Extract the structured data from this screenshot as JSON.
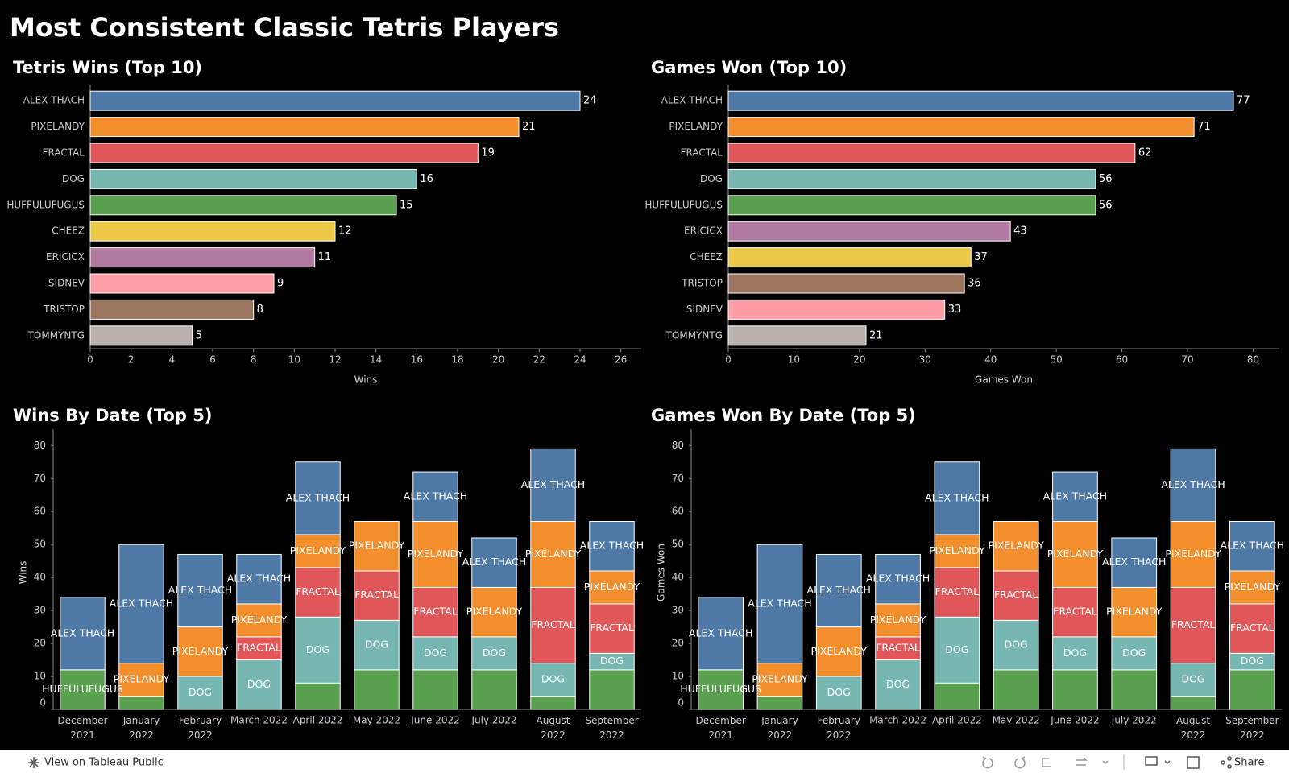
{
  "title": "Most Consistent Classic Tetris Players",
  "chart_data": [
    {
      "type": "hbar",
      "title": "Tetris Wins (Top 10)",
      "categories": [
        "ALEX THACH",
        "PIXELANDY",
        "FRACTAL",
        "DOG",
        "HUFFULUFUGUS",
        "CHEEZ",
        "ERICICX",
        "SIDNEV",
        "TRISTOP",
        "TOMMYNTG"
      ],
      "values": [
        24,
        21,
        19,
        16,
        15,
        12,
        11,
        9,
        8,
        5
      ],
      "colors": [
        "#4e79a7",
        "#f28e2b",
        "#e15759",
        "#76b7b2",
        "#59a14f",
        "#edc948",
        "#b07aa1",
        "#ff9da7",
        "#9c755f",
        "#bab0ac"
      ],
      "xlabel": "Wins",
      "xlim": [
        0,
        27
      ],
      "xticks": [
        0,
        2,
        4,
        6,
        8,
        10,
        12,
        14,
        16,
        18,
        20,
        22,
        24,
        26
      ]
    },
    {
      "type": "hbar",
      "title": "Games Won (Top 10)",
      "categories": [
        "ALEX THACH",
        "PIXELANDY",
        "FRACTAL",
        "DOG",
        "HUFFULUFUGUS",
        "ERICICX",
        "CHEEZ",
        "TRISTOP",
        "SIDNEV",
        "TOMMYNTG"
      ],
      "values": [
        77,
        71,
        62,
        56,
        56,
        43,
        37,
        36,
        33,
        21
      ],
      "colors": [
        "#4e79a7",
        "#f28e2b",
        "#e15759",
        "#76b7b2",
        "#59a14f",
        "#b07aa1",
        "#edc948",
        "#9c755f",
        "#ff9da7",
        "#bab0ac"
      ],
      "xlabel": "Games Won",
      "xlim": [
        0,
        84
      ],
      "xticks": [
        0,
        10,
        20,
        30,
        40,
        50,
        60,
        70,
        80
      ]
    },
    {
      "type": "stacked_bar",
      "title": "Wins By Date (Top 5)",
      "ylabel": "Wins",
      "categories": [
        "December 2021",
        "January 2022",
        "February 2022",
        "March 2022",
        "April 2022",
        "May 2022",
        "June 2022",
        "July 2022",
        "August 2022",
        "September 2022"
      ],
      "series": [
        {
          "name": "HUFFULUFUGUS",
          "color": "#59a14f",
          "values": [
            12,
            4,
            null,
            null,
            8,
            12,
            12,
            12,
            4,
            12
          ]
        },
        {
          "name": "DOG",
          "color": "#76b7b2",
          "values": [
            null,
            null,
            10,
            15,
            20,
            15,
            10,
            10,
            10,
            5
          ]
        },
        {
          "name": "FRACTAL",
          "color": "#e15759",
          "values": [
            null,
            null,
            null,
            7,
            15,
            15,
            15,
            null,
            23,
            15
          ]
        },
        {
          "name": "PIXELANDY",
          "color": "#f28e2b",
          "values": [
            null,
            10,
            15,
            10,
            10,
            15,
            20,
            15,
            20,
            10
          ]
        },
        {
          "name": "ALEX THACH",
          "color": "#4e79a7",
          "values": [
            22,
            36,
            22,
            15,
            22,
            null,
            15,
            15,
            22,
            15
          ]
        }
      ],
      "ylim": [
        0,
        83
      ],
      "yticks": [
        0,
        10,
        20,
        30,
        40,
        50,
        60,
        70,
        80
      ]
    },
    {
      "type": "stacked_bar",
      "title": "Games Won By Date (Top 5)",
      "ylabel": "Games Won",
      "categories": [
        "December 2021",
        "January 2022",
        "February 2022",
        "March 2022",
        "April 2022",
        "May 2022",
        "June 2022",
        "July 2022",
        "August 2022",
        "September 2022"
      ],
      "series": [
        {
          "name": "HUFFULUFUGUS",
          "color": "#59a14f",
          "values": [
            12,
            4,
            null,
            null,
            8,
            12,
            12,
            12,
            4,
            12
          ]
        },
        {
          "name": "DOG",
          "color": "#76b7b2",
          "values": [
            null,
            null,
            10,
            15,
            20,
            15,
            10,
            10,
            10,
            5
          ]
        },
        {
          "name": "FRACTAL",
          "color": "#e15759",
          "values": [
            null,
            null,
            null,
            7,
            15,
            15,
            15,
            null,
            23,
            15
          ]
        },
        {
          "name": "PIXELANDY",
          "color": "#f28e2b",
          "values": [
            null,
            10,
            15,
            10,
            10,
            15,
            20,
            15,
            20,
            10
          ]
        },
        {
          "name": "ALEX THACH",
          "color": "#4e79a7",
          "values": [
            22,
            36,
            22,
            15,
            22,
            null,
            15,
            15,
            22,
            15
          ]
        }
      ],
      "ylim": [
        0,
        83
      ],
      "yticks": [
        0,
        10,
        20,
        30,
        40,
        50,
        60,
        70,
        80
      ]
    }
  ],
  "footer": {
    "link": "View on Tableau Public",
    "share": "Share"
  }
}
